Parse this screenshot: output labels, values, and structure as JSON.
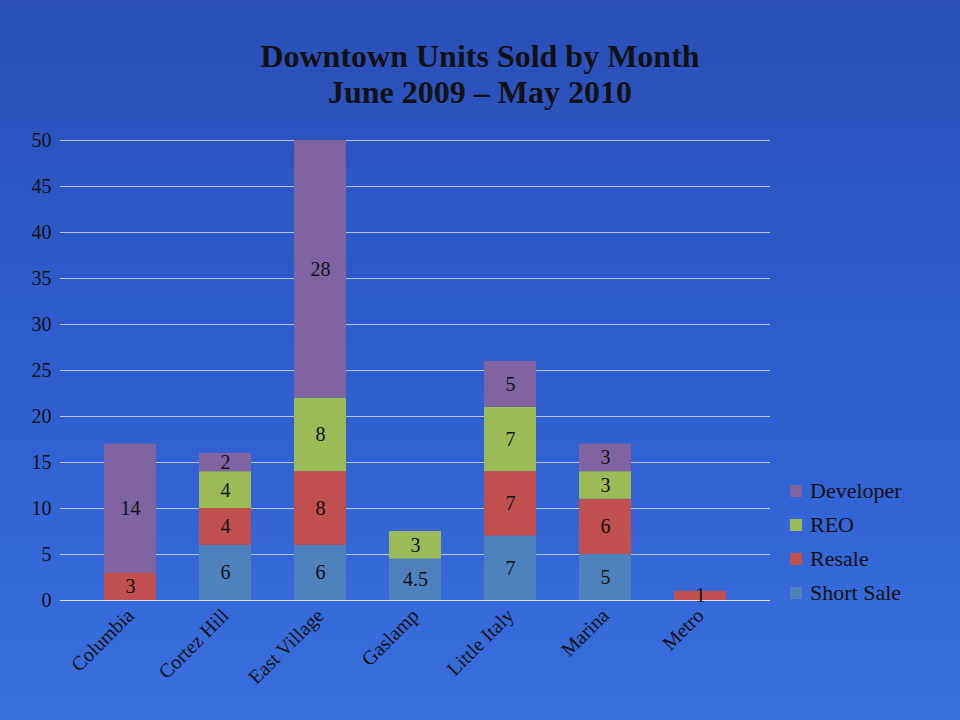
{
  "chart_data": {
    "type": "bar",
    "title": "Downtown Units Sold by Month",
    "subtitle": "June 2009 – May 2010",
    "categories": [
      "Columbia",
      "Cortez Hill",
      "East Village",
      "Gaslamp",
      "Little Italy",
      "Marina",
      "Metro"
    ],
    "series": [
      {
        "name": "Short Sale",
        "color": "#4f81bd",
        "values": [
          null,
          6,
          6,
          4.5,
          7,
          5,
          null
        ]
      },
      {
        "name": "Resale",
        "color": "#c0504d",
        "values": [
          3,
          4,
          8,
          null,
          7,
          6,
          1
        ]
      },
      {
        "name": "REO",
        "color": "#9bbb59",
        "values": [
          null,
          4,
          8,
          3,
          7,
          3,
          null
        ]
      },
      {
        "name": "Developer",
        "color": "#8064a2",
        "values": [
          14,
          2,
          28,
          null,
          5,
          3,
          null
        ]
      }
    ],
    "stacked": true,
    "data_labels": true,
    "grid": true,
    "legend": "right",
    "ylim": [
      0,
      50
    ],
    "yticks": [
      0,
      5,
      10,
      15,
      20,
      25,
      30,
      35,
      40,
      45,
      50
    ]
  }
}
